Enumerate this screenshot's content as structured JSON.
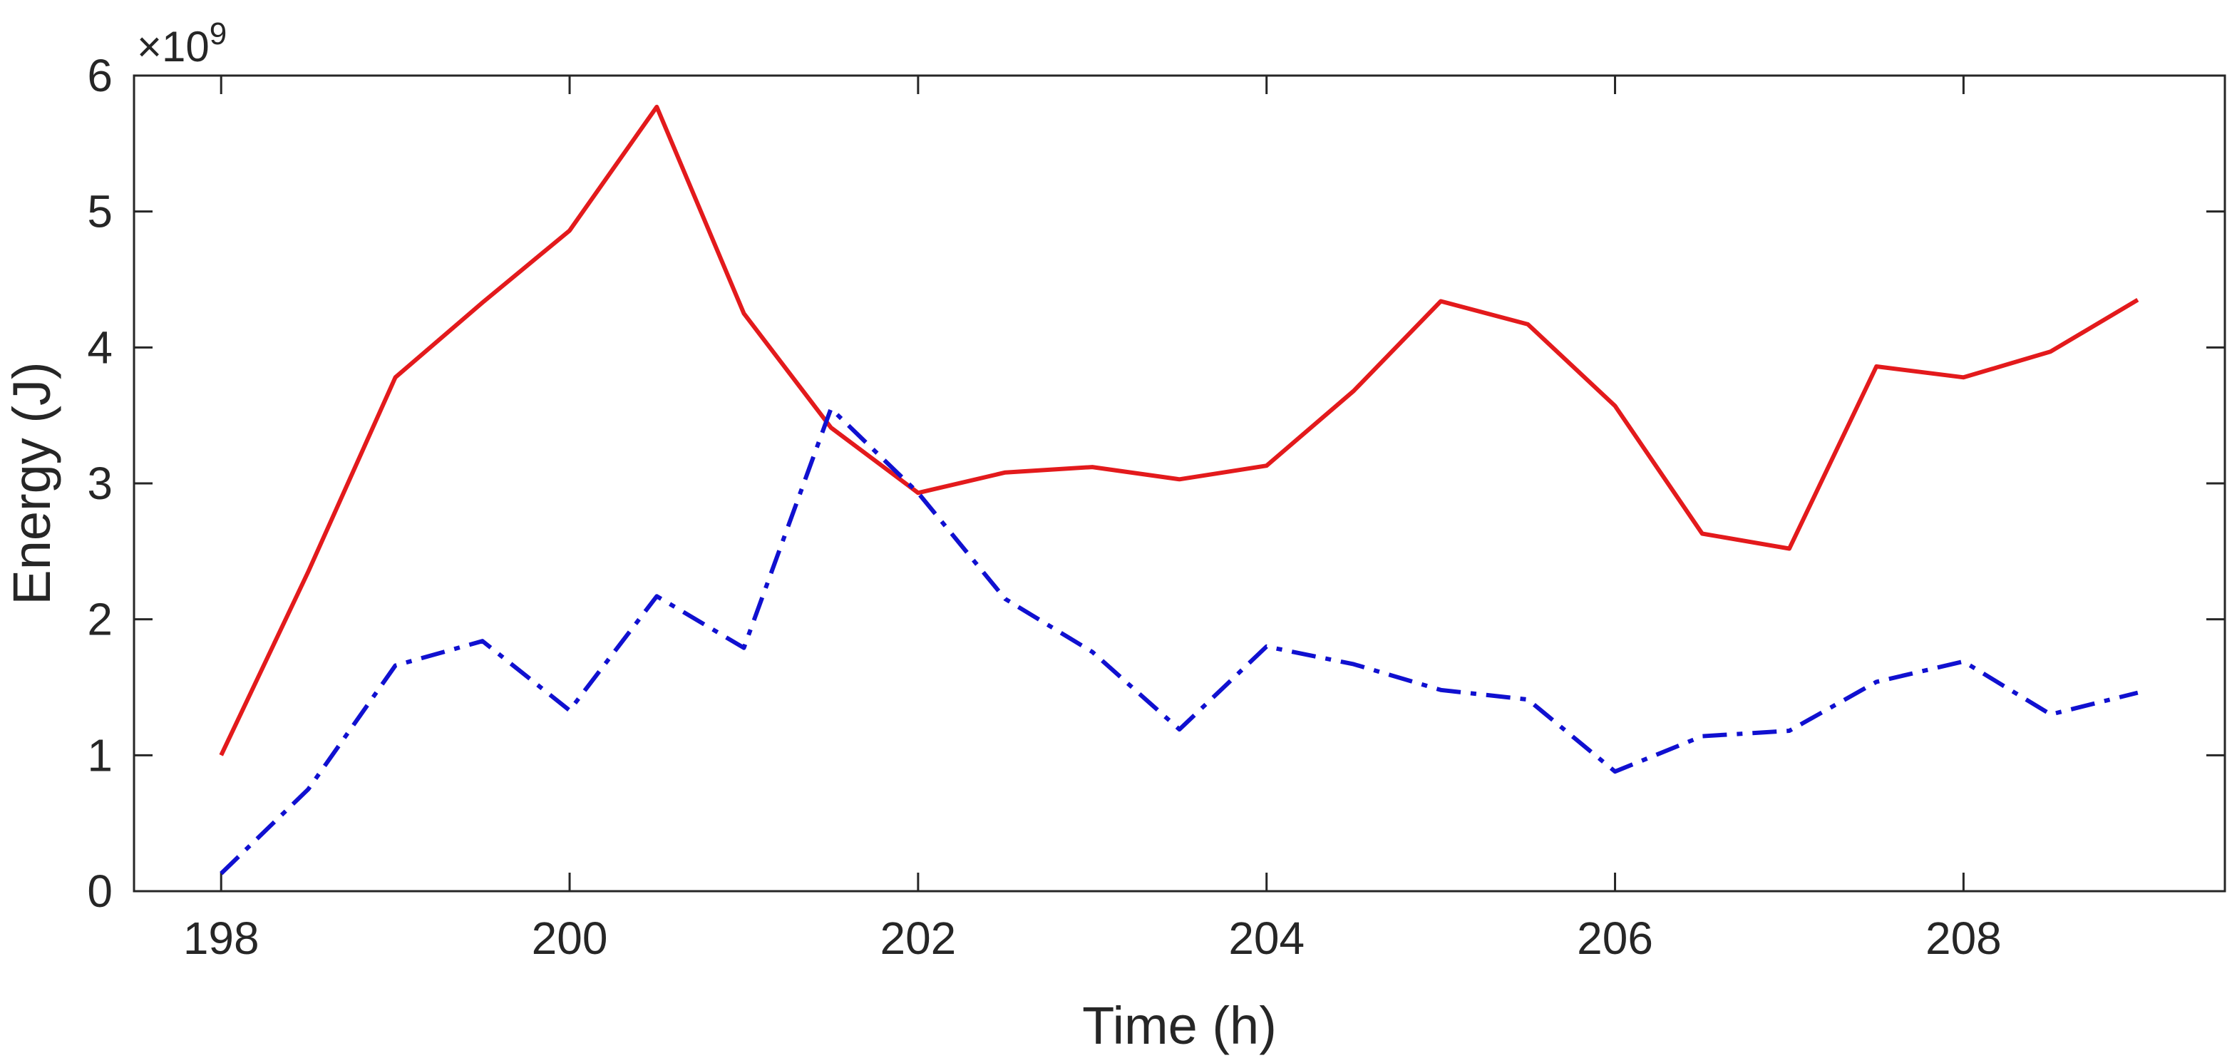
{
  "chart_data": {
    "type": "line",
    "xlabel": "Time (h)",
    "ylabel": "Energy (J)",
    "y_multiplier_label": "×10",
    "y_multiplier_exponent": "9",
    "xlim": [
      197.5,
      209.5
    ],
    "ylim": [
      0,
      6
    ],
    "xticks": [
      198,
      200,
      202,
      204,
      206,
      208
    ],
    "yticks": [
      0,
      1,
      2,
      3,
      4,
      5,
      6
    ],
    "grid": false,
    "series": [
      {
        "color": "#e31a1c",
        "style": "solid",
        "x": [
          198,
          198.5,
          199,
          199.5,
          200,
          200.5,
          201,
          201.5,
          202,
          202.5,
          203,
          203.5,
          204,
          204.5,
          205,
          205.5,
          206,
          206.5,
          207,
          207.5,
          208,
          208.5,
          209
        ],
        "y": [
          1.0,
          2.35,
          3.78,
          4.33,
          4.86,
          5.77,
          4.25,
          3.41,
          2.93,
          3.08,
          3.12,
          3.03,
          3.13,
          3.68,
          4.34,
          4.17,
          3.57,
          2.63,
          2.52,
          3.86,
          3.78,
          3.97,
          4.35
        ]
      },
      {
        "color": "#1010d0",
        "style": "dashdot",
        "x": [
          198,
          198.5,
          199,
          199.5,
          200,
          200.5,
          201,
          201.5,
          202,
          202.5,
          203,
          203.5,
          204,
          204.5,
          205,
          205.5,
          206,
          206.5,
          207,
          207.5,
          208,
          208.5,
          209
        ],
        "y": [
          0.13,
          0.75,
          1.66,
          1.84,
          1.33,
          2.17,
          1.79,
          3.55,
          2.93,
          2.15,
          1.76,
          1.19,
          1.8,
          1.67,
          1.48,
          1.41,
          0.88,
          1.14,
          1.18,
          1.54,
          1.69,
          1.3,
          1.46
        ]
      }
    ]
  }
}
